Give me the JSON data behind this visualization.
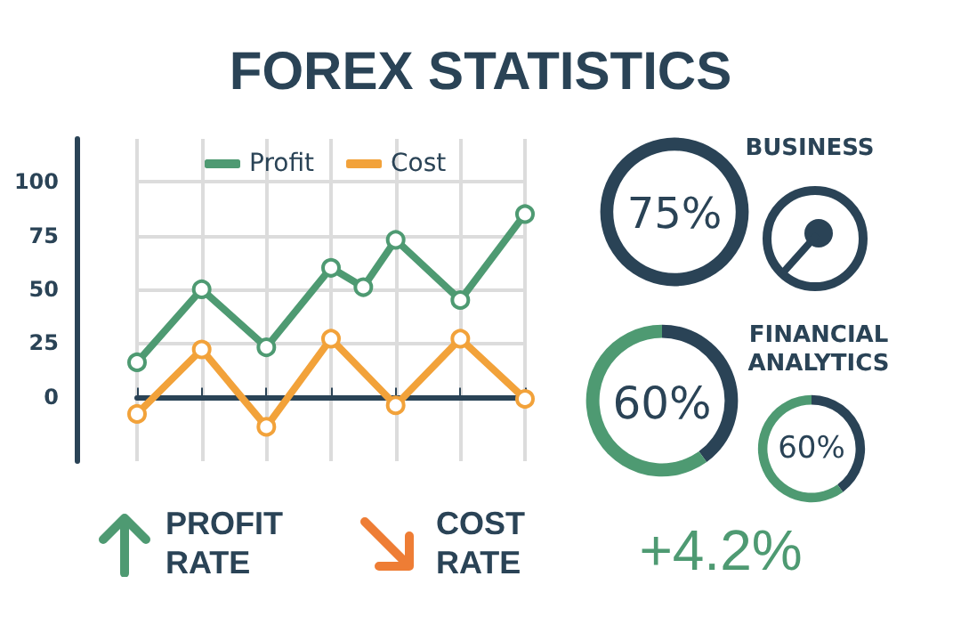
{
  "chart_data": [
    {
      "type": "line",
      "title": "FOREX STATISTICS",
      "categories": [
        null,
        null,
        null,
        null,
        null,
        null,
        null,
        null,
        null,
        null,
        null,
        null,
        null
      ],
      "ylim": [
        -30,
        120
      ],
      "yticks": [
        0,
        25,
        50,
        75,
        100
      ],
      "grid": true,
      "legend": "top",
      "marker": "circle",
      "line_style": "solid",
      "series": [
        {
          "name": "Profit",
          "color": "#4e9a72",
          "values": [
            16,
            null,
            50,
            null,
            23,
            null,
            60,
            51,
            73,
            null,
            45,
            null,
            85
          ]
        },
        {
          "name": "Cost",
          "color": "#f2a23a",
          "values": [
            -8,
            null,
            22,
            null,
            -14,
            null,
            27,
            null,
            -4,
            null,
            27,
            null,
            -1
          ]
        }
      ]
    },
    {
      "type": "donut",
      "title": "BUSINESS",
      "categories": [
        null,
        null
      ],
      "values": [
        75,
        25
      ],
      "colors": [
        "#2a4356",
        "#2a4356"
      ],
      "annotations": [
        "75%"
      ]
    },
    {
      "type": "donut",
      "title": "FINANCIAL ANALYTICS",
      "categories": [
        null,
        null
      ],
      "values": [
        40,
        60
      ],
      "colors": [
        "#2a4356",
        "#4e9a72"
      ],
      "annotations": [
        "60%"
      ]
    },
    {
      "type": "donut",
      "categories": [
        null,
        null
      ],
      "values": [
        40,
        60
      ],
      "colors": [
        "#2a4356",
        "#4e9a72"
      ],
      "annotations": [
        "60%"
      ]
    },
    {
      "type": "other",
      "annotations": [
        "PROFIT RATE",
        "COST RATE",
        "+4.2%"
      ]
    }
  ]
}
